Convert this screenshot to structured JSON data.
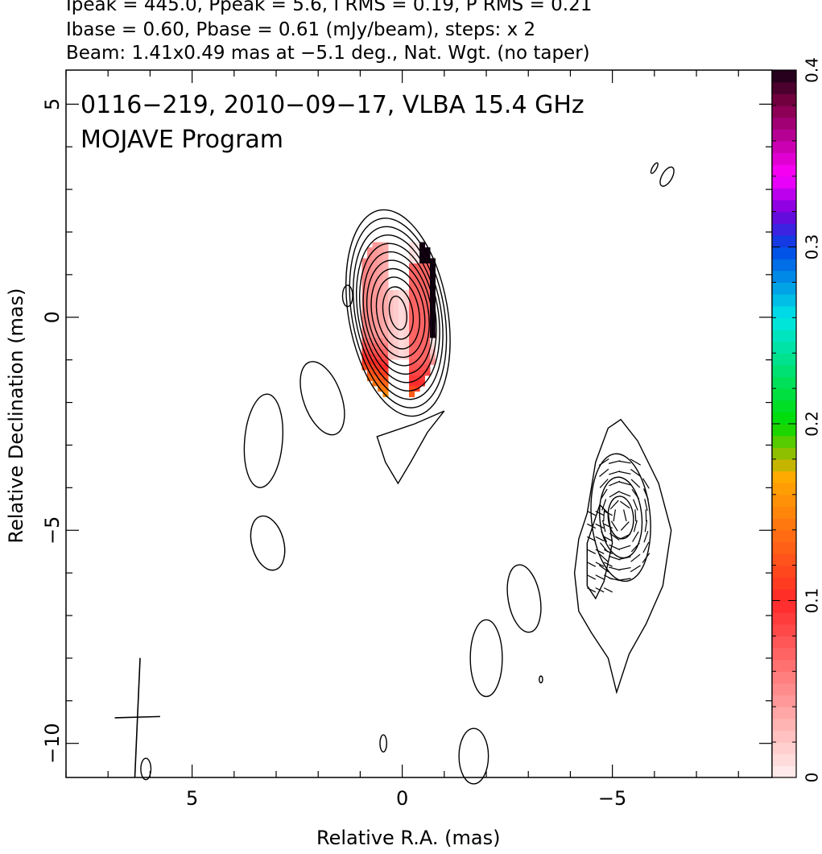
{
  "header": {
    "line1": "Ipeak = 445.0, Ppeak = 5.6, I RMS = 0.19, P RMS = 0.21",
    "line2": "Ibase = 0.60, Pbase = 0.61 (mJy/beam), steps: x 2",
    "line3": "Beam: 1.41x0.49 mas at −5.1 deg., Nat. Wgt. (no taper)"
  },
  "chart_data": {
    "type": "contour",
    "title": "0116−219, 2010−09−17, VLBA 15.4 GHz",
    "subtitle": "MOJAVE Program",
    "xlabel": "Relative R.A. (mas)",
    "ylabel": "Relative Declination (mas)",
    "xlim": [
      8.0,
      -8.8
    ],
    "ylim": [
      -10.8,
      5.8
    ],
    "x_ticks": [
      5,
      0,
      -5
    ],
    "x_tick_labels": [
      "5",
      "0",
      "−5"
    ],
    "y_ticks": [
      5,
      0,
      -5,
      -10
    ],
    "y_tick_labels": [
      "5",
      "0",
      "−5",
      "−10"
    ],
    "colorbar": {
      "range": [
        0,
        0.4
      ],
      "ticks": [
        0,
        0.1,
        0.2,
        0.3,
        0.4
      ],
      "tick_labels": [
        "0",
        "0.1",
        "0.2",
        "0.3",
        "0.4"
      ]
    },
    "core": {
      "center": [
        0.1,
        0.1
      ],
      "contour_semi_axes": [
        [
          0.2,
          0.4
        ],
        [
          0.35,
          0.62
        ],
        [
          0.5,
          0.85
        ],
        [
          0.62,
          1.05
        ],
        [
          0.72,
          1.25
        ],
        [
          0.8,
          1.45
        ],
        [
          0.88,
          1.65
        ],
        [
          0.95,
          1.85
        ],
        [
          1.02,
          2.05
        ],
        [
          1.1,
          2.25
        ],
        [
          1.18,
          2.45
        ]
      ],
      "contour_angle_deg": -10
    },
    "jet_knot": {
      "center": [
        -5.2,
        -4.7
      ],
      "contour_semi_axes": [
        [
          0.3,
          0.5
        ],
        [
          0.5,
          0.95
        ],
        [
          0.7,
          1.5
        ]
      ],
      "contour_angle_deg": -5
    },
    "beam": {
      "center": [
        6.3,
        -9.4
      ],
      "major_mas": 1.41,
      "minor_mas": 0.49,
      "pa_deg": -5.1
    }
  }
}
